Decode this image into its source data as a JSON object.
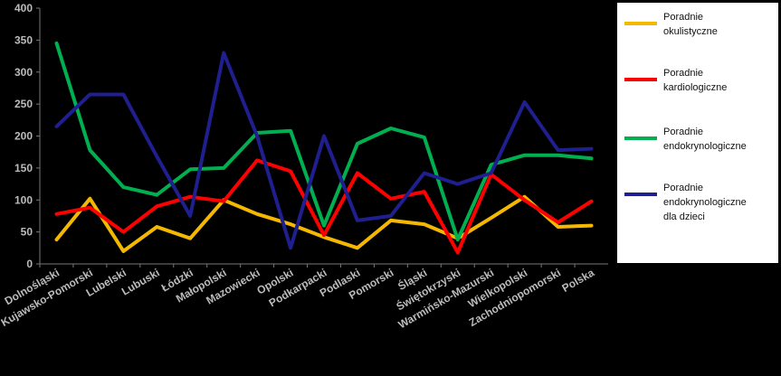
{
  "chart_data": {
    "type": "line",
    "title": "",
    "xlabel": "",
    "ylabel": "",
    "ylim": [
      0,
      400
    ],
    "yticks": [
      "0",
      "50",
      "100",
      "150",
      "200",
      "250",
      "300",
      "350",
      "400"
    ],
    "grid": false,
    "legend_position": "right",
    "categories": [
      "Dolnośląski",
      "Kujawsko-Pomorski",
      "Lubelski",
      "Lubuski",
      "Łódzki",
      "Małopolski",
      "Mazowiecki",
      "Opolski",
      "Podkarpacki",
      "Podlaski",
      "Pomorski",
      "Śląski",
      "Świętokrzyski",
      "Warmińsko-Mazurski",
      "Wielkopolski",
      "Zachodniopomorski",
      "Polska"
    ],
    "series": [
      {
        "name": "Poradnie okulistyczne",
        "color": "#f5b800",
        "values": [
          38,
          102,
          20,
          58,
          40,
          100,
          78,
          62,
          42,
          25,
          68,
          62,
          40,
          72,
          105,
          58,
          60
        ]
      },
      {
        "name": "Poradnie kardiologiczne",
        "color": "#ff0000",
        "values": [
          78,
          88,
          50,
          90,
          105,
          98,
          162,
          145,
          45,
          142,
          102,
          113,
          18,
          140,
          100,
          65,
          98
        ]
      },
      {
        "name": "Poradnie endokrynologiczne",
        "color": "#00b050",
        "values": [
          345,
          178,
          120,
          108,
          148,
          150,
          205,
          208,
          60,
          188,
          212,
          198,
          38,
          155,
          170,
          170,
          165
        ]
      },
      {
        "name": "Poradnie endokrynologiczne dla dzieci",
        "color": "#1f1f8f",
        "values": [
          215,
          265,
          265,
          168,
          75,
          330,
          200,
          25,
          200,
          68,
          75,
          142,
          125,
          142,
          253,
          178,
          180
        ]
      }
    ]
  }
}
